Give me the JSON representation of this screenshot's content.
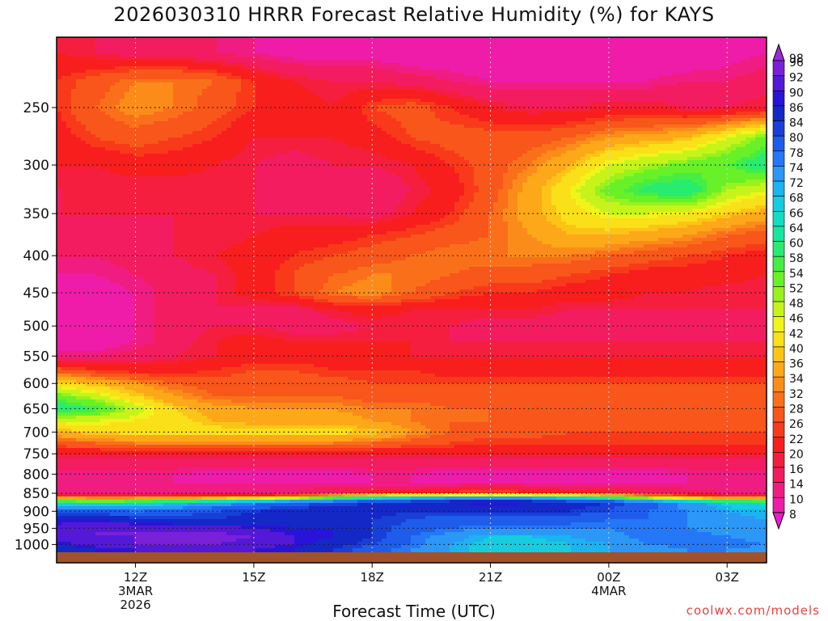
{
  "title": "2026030310 HRRR Forecast Relative Humidity (%) for KAYS",
  "xlabel": "Forecast Time (UTC)",
  "credit": "coolwx.com/models",
  "chart_data": {
    "type": "heatmap",
    "title": "2026030310 HRRR Forecast Relative Humidity (%) for KAYS",
    "xlabel": "Forecast Time (UTC)",
    "ylabel": "",
    "x_ticks": [
      {
        "hours": 2,
        "label": "12Z",
        "sub": [
          "3MAR",
          "2026"
        ]
      },
      {
        "hours": 5,
        "label": "15Z",
        "sub": []
      },
      {
        "hours": 8,
        "label": "18Z",
        "sub": []
      },
      {
        "hours": 11,
        "label": "21Z",
        "sub": []
      },
      {
        "hours": 14,
        "label": "00Z",
        "sub": [
          "4MAR"
        ]
      },
      {
        "hours": 17,
        "label": "03Z",
        "sub": []
      }
    ],
    "x_range_hours": [
      0,
      18
    ],
    "y_ticks": [
      250,
      300,
      350,
      400,
      450,
      500,
      550,
      600,
      650,
      700,
      750,
      800,
      850,
      900,
      950,
      1000
    ],
    "y_range_hpa": [
      200,
      1025
    ],
    "y_scale": "log",
    "grid": true,
    "colorbar": {
      "labels": [
        98,
        96,
        92,
        90,
        86,
        84,
        80,
        78,
        74,
        72,
        68,
        66,
        64,
        60,
        58,
        54,
        52,
        48,
        46,
        42,
        40,
        36,
        34,
        32,
        28,
        26,
        22,
        20,
        16,
        14,
        10,
        8
      ],
      "colors": [
        "#9a2ad8",
        "#7a20d8",
        "#5418d8",
        "#2814d8",
        "#1428c8",
        "#1840d8",
        "#1e5cec",
        "#2478f8",
        "#2b98f8",
        "#1ab4f0",
        "#16cce0",
        "#14dcc4",
        "#16e6a0",
        "#28ec70",
        "#44ee44",
        "#68f028",
        "#98f21c",
        "#c6f41a",
        "#f0f41a",
        "#fae018",
        "#fcc416",
        "#fca818",
        "#fc8c1a",
        "#fa701a",
        "#f8561a",
        "#f83a1a",
        "#f81e1e",
        "#f61e3e",
        "#f41c60",
        "#f01c82",
        "#ee1ca8",
        "#e81cc8"
      ]
    },
    "levels_hpa": [
      210,
      230,
      250,
      275,
      300,
      325,
      350,
      375,
      400,
      425,
      450,
      475,
      500,
      525,
      550,
      575,
      600,
      625,
      650,
      675,
      700,
      725,
      750,
      775,
      800,
      825,
      850,
      860,
      875,
      900,
      925,
      950,
      975,
      1000,
      1015
    ],
    "times_hours": [
      0,
      1,
      2,
      3,
      4,
      5,
      6,
      7,
      8,
      9,
      10,
      11,
      12,
      13,
      14,
      15,
      16,
      17,
      18
    ],
    "rh_percent": [
      [
        22,
        20,
        18,
        18,
        16,
        14,
        12,
        12,
        12,
        10,
        10,
        10,
        10,
        10,
        10,
        10,
        10,
        12,
        14
      ],
      [
        26,
        30,
        34,
        34,
        32,
        26,
        22,
        20,
        20,
        18,
        16,
        14,
        14,
        14,
        14,
        14,
        16,
        16,
        18
      ],
      [
        26,
        32,
        36,
        34,
        30,
        26,
        24,
        22,
        28,
        30,
        26,
        22,
        20,
        20,
        22,
        22,
        20,
        20,
        22
      ],
      [
        24,
        28,
        30,
        28,
        26,
        22,
        22,
        22,
        24,
        28,
        30,
        30,
        30,
        32,
        36,
        38,
        40,
        48,
        56
      ],
      [
        22,
        22,
        24,
        24,
        22,
        20,
        18,
        20,
        20,
        22,
        26,
        30,
        34,
        40,
        48,
        52,
        56,
        58,
        64
      ],
      [
        20,
        20,
        20,
        20,
        20,
        20,
        18,
        18,
        16,
        20,
        24,
        30,
        38,
        46,
        56,
        62,
        64,
        52,
        48
      ],
      [
        20,
        20,
        20,
        20,
        20,
        20,
        20,
        20,
        18,
        22,
        26,
        32,
        38,
        44,
        48,
        48,
        46,
        42,
        38
      ],
      [
        18,
        18,
        18,
        20,
        20,
        22,
        24,
        24,
        26,
        28,
        30,
        32,
        36,
        40,
        40,
        38,
        36,
        32,
        30
      ],
      [
        16,
        16,
        18,
        20,
        22,
        24,
        26,
        28,
        30,
        32,
        34,
        34,
        34,
        34,
        32,
        30,
        28,
        26,
        24
      ],
      [
        14,
        14,
        16,
        18,
        20,
        24,
        28,
        32,
        34,
        34,
        32,
        30,
        30,
        28,
        26,
        24,
        24,
        24,
        22
      ],
      [
        12,
        12,
        14,
        18,
        20,
        24,
        28,
        34,
        36,
        32,
        28,
        26,
        26,
        24,
        24,
        22,
        22,
        20,
        20
      ],
      [
        12,
        12,
        14,
        18,
        20,
        18,
        18,
        22,
        24,
        22,
        22,
        22,
        22,
        20,
        20,
        20,
        20,
        20,
        20
      ],
      [
        12,
        12,
        14,
        18,
        20,
        20,
        18,
        18,
        20,
        20,
        20,
        18,
        18,
        18,
        18,
        18,
        18,
        18,
        18
      ],
      [
        10,
        10,
        14,
        18,
        22,
        24,
        22,
        22,
        22,
        22,
        20,
        20,
        20,
        20,
        20,
        20,
        20,
        20,
        20
      ],
      [
        16,
        16,
        18,
        20,
        22,
        24,
        24,
        24,
        22,
        22,
        22,
        22,
        22,
        22,
        22,
        22,
        22,
        22,
        22
      ],
      [
        30,
        26,
        24,
        24,
        26,
        28,
        28,
        26,
        26,
        26,
        24,
        24,
        24,
        24,
        24,
        24,
        24,
        24,
        24
      ],
      [
        44,
        40,
        36,
        32,
        30,
        30,
        30,
        30,
        28,
        28,
        28,
        28,
        28,
        28,
        28,
        28,
        28,
        28,
        28
      ],
      [
        56,
        50,
        42,
        36,
        32,
        32,
        32,
        32,
        30,
        30,
        30,
        30,
        30,
        30,
        30,
        30,
        30,
        30,
        30
      ],
      [
        64,
        60,
        50,
        42,
        38,
        36,
        36,
        36,
        34,
        34,
        32,
        32,
        32,
        30,
        30,
        30,
        30,
        30,
        30
      ],
      [
        48,
        48,
        46,
        44,
        40,
        38,
        38,
        38,
        36,
        34,
        32,
        32,
        30,
        30,
        30,
        28,
        28,
        28,
        28
      ],
      [
        40,
        42,
        44,
        44,
        44,
        44,
        44,
        44,
        42,
        36,
        32,
        30,
        30,
        28,
        28,
        28,
        28,
        28,
        28
      ],
      [
        30,
        32,
        34,
        34,
        34,
        34,
        34,
        34,
        32,
        30,
        28,
        26,
        26,
        26,
        26,
        26,
        26,
        26,
        26
      ],
      [
        22,
        22,
        22,
        22,
        22,
        22,
        22,
        22,
        22,
        22,
        22,
        22,
        22,
        22,
        22,
        22,
        22,
        22,
        22
      ],
      [
        18,
        18,
        18,
        18,
        18,
        18,
        18,
        18,
        18,
        18,
        18,
        18,
        18,
        18,
        18,
        18,
        18,
        18,
        18
      ],
      [
        14,
        14,
        14,
        14,
        12,
        12,
        12,
        12,
        14,
        14,
        12,
        12,
        12,
        12,
        12,
        12,
        14,
        14,
        14
      ],
      [
        14,
        14,
        14,
        14,
        14,
        14,
        14,
        14,
        14,
        14,
        14,
        14,
        14,
        14,
        14,
        14,
        14,
        14,
        16
      ],
      [
        16,
        16,
        16,
        16,
        16,
        16,
        16,
        20,
        24,
        26,
        28,
        30,
        28,
        26,
        24,
        20,
        18,
        16,
        16
      ],
      [
        30,
        28,
        28,
        30,
        32,
        36,
        42,
        54,
        62,
        68,
        70,
        72,
        70,
        66,
        58,
        46,
        36,
        28,
        28
      ],
      [
        66,
        64,
        66,
        70,
        74,
        78,
        82,
        84,
        86,
        88,
        90,
        92,
        90,
        88,
        86,
        82,
        76,
        70,
        66
      ],
      [
        84,
        82,
        80,
        82,
        84,
        86,
        88,
        88,
        88,
        86,
        86,
        88,
        88,
        86,
        84,
        80,
        78,
        74,
        72
      ],
      [
        90,
        90,
        88,
        86,
        86,
        88,
        88,
        88,
        86,
        84,
        82,
        82,
        82,
        82,
        80,
        80,
        78,
        76,
        74
      ],
      [
        94,
        96,
        96,
        94,
        94,
        92,
        90,
        90,
        86,
        82,
        80,
        78,
        78,
        78,
        78,
        80,
        78,
        76,
        74
      ],
      [
        94,
        96,
        96,
        98,
        98,
        96,
        92,
        90,
        86,
        80,
        76,
        72,
        72,
        74,
        76,
        80,
        80,
        78,
        76
      ],
      [
        90,
        94,
        96,
        96,
        96,
        94,
        92,
        88,
        84,
        80,
        74,
        70,
        70,
        72,
        74,
        78,
        80,
        80,
        78
      ],
      [
        86,
        90,
        92,
        94,
        94,
        92,
        90,
        86,
        82,
        78,
        74,
        70,
        70,
        72,
        74,
        76,
        78,
        78,
        76
      ]
    ]
  }
}
